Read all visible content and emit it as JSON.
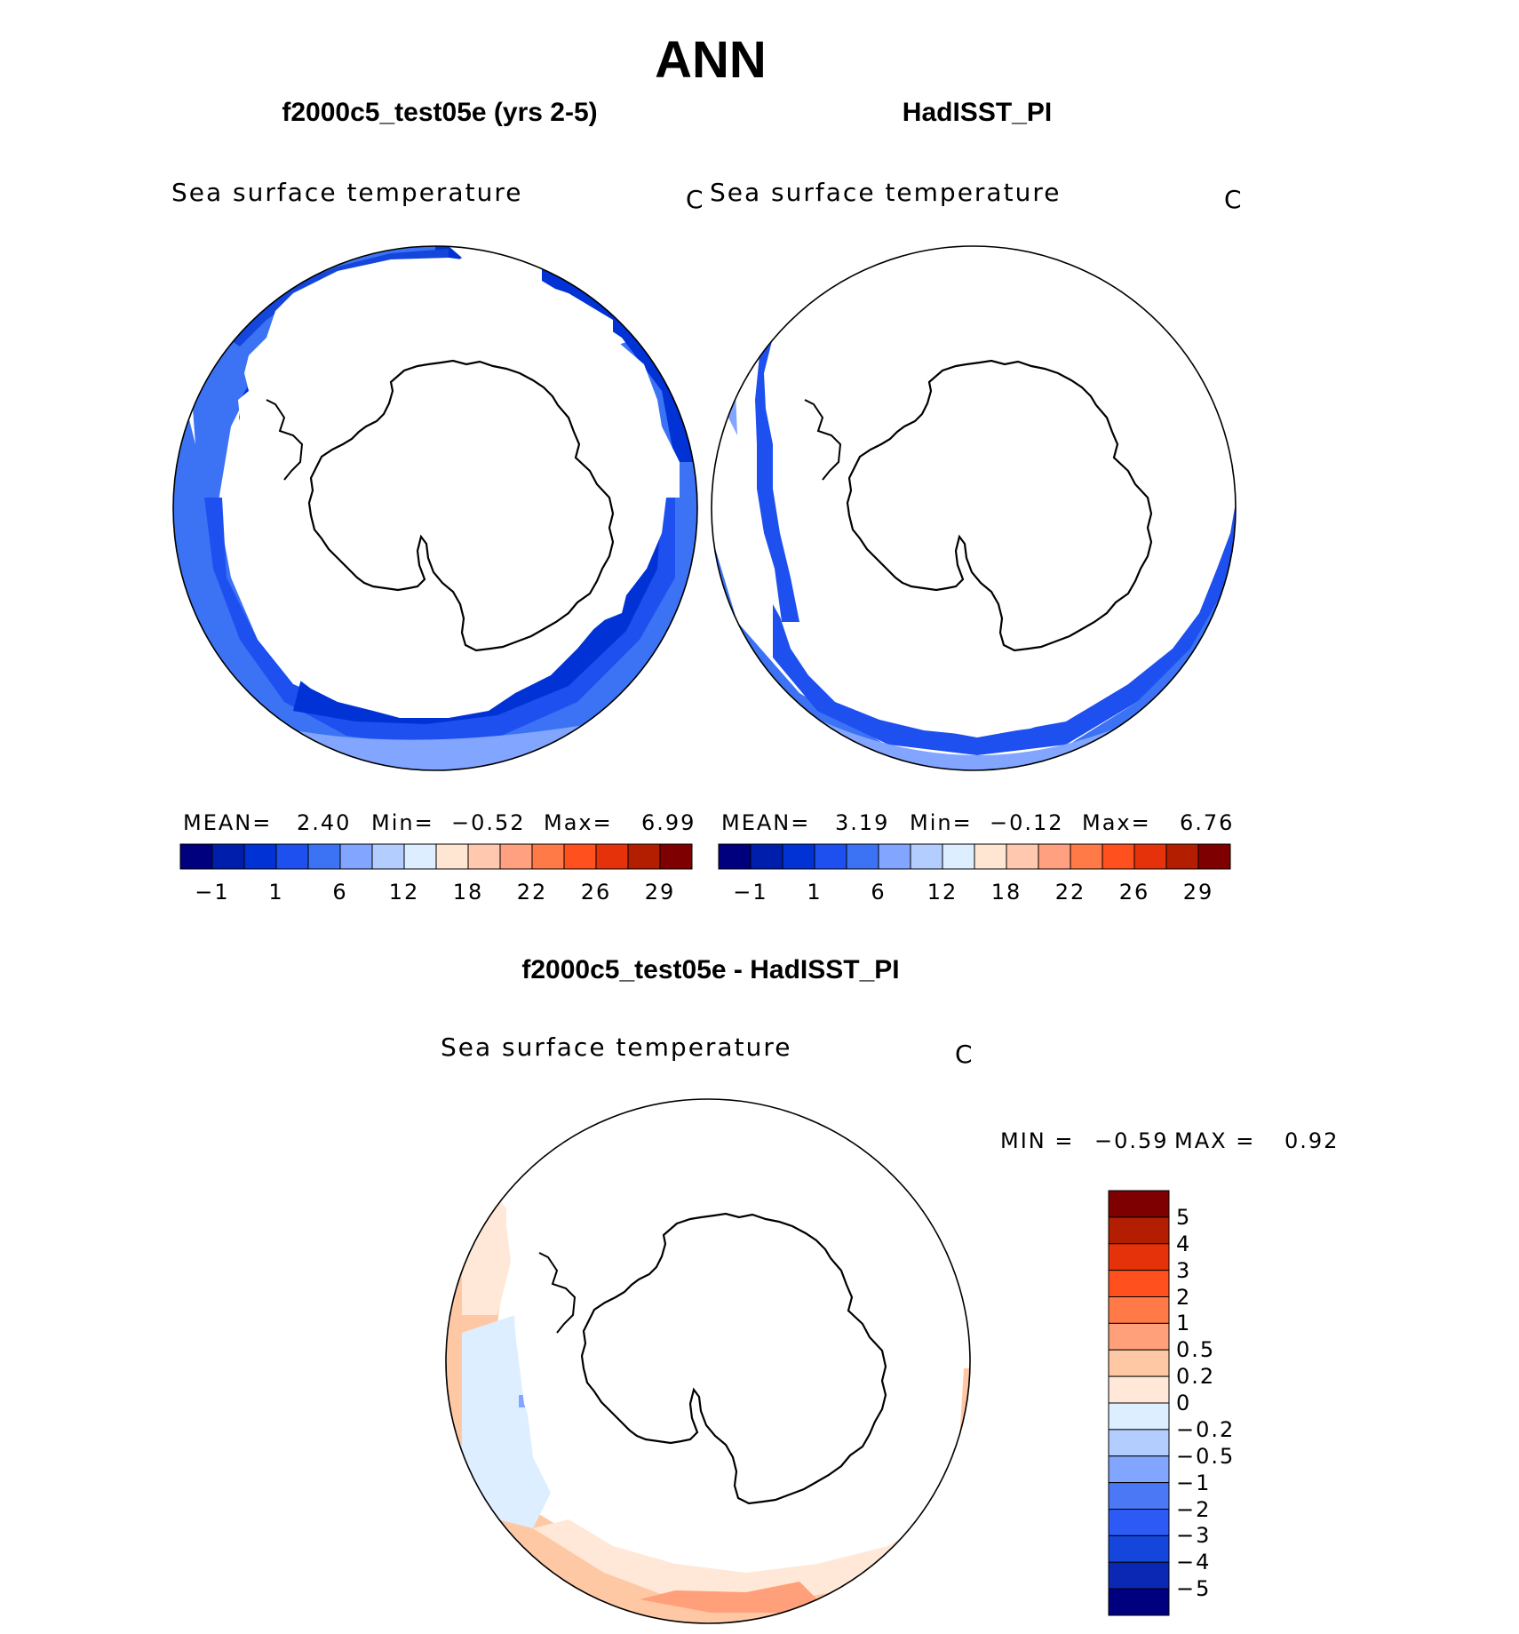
{
  "main_title": "ANN",
  "colors": {
    "contour_fill": [
      "#00007f",
      "#001eac",
      "#0032d6",
      "#1e50f0",
      "#3c73f5",
      "#82a5ff",
      "#b4cdff",
      "#dceeff",
      "#ffe6d2",
      "#ffc8af",
      "#ffa080",
      "#ff7a46",
      "#ff501e",
      "#e6320a",
      "#b41e00",
      "#7f0000"
    ],
    "diff_fill": [
      "#00007f",
      "#0a28b4",
      "#1446dc",
      "#2d5af5",
      "#4b78f5",
      "#82a5ff",
      "#b4cdff",
      "#dceeff",
      "#ffe8d8",
      "#ffc8a5",
      "#ffa07a",
      "#ff7a46",
      "#ff501e",
      "#e6320a",
      "#b41e00",
      "#7f0000"
    ],
    "ocean_dark": "#0032d6",
    "ocean_mid": "#1e50f0",
    "ocean_light": "#3c73f5",
    "ocean_lighter": "#82a5ff",
    "diff_warm": "#ffc8a5",
    "diff_warm_light": "#ffe8d8",
    "diff_cool": "#dceeff",
    "diff_warm_strong": "#ffa07a"
  },
  "panels": [
    {
      "title": "f2000c5_test05e (yrs 2-5)",
      "field_label": "Sea surface temperature",
      "unit": "C",
      "stats": {
        "mean_label": "MEAN=",
        "mean": "2.40",
        "min_label": "Min=",
        "min": "−0.52",
        "max_label": "Max=",
        "max": "6.99"
      },
      "colorbar_ticks": [
        "−1",
        "1",
        "6",
        "12",
        "18",
        "22",
        "26",
        "29"
      ]
    },
    {
      "title": "HadISST_PI",
      "field_label": "Sea surface temperature",
      "unit": "C",
      "stats": {
        "mean_label": "MEAN=",
        "mean": "3.19",
        "min_label": "Min=",
        "min": "−0.12",
        "max_label": "Max=",
        "max": "6.76"
      },
      "colorbar_ticks": [
        "−1",
        "1",
        "6",
        "12",
        "18",
        "22",
        "26",
        "29"
      ]
    }
  ],
  "difference": {
    "title": "f2000c5_test05e - HadISST_PI",
    "field_label": "Sea surface temperature",
    "unit": "C",
    "stats": {
      "min_label": "MIN =",
      "min": "−0.59",
      "max_label": "MAX =",
      "max": "0.92"
    },
    "colorbar_ticks": [
      "5",
      "4",
      "3",
      "2",
      "1",
      "0.5",
      "0.2",
      "0",
      "−0.2",
      "−0.5",
      "−1",
      "−2",
      "−3",
      "−4",
      "−5"
    ]
  }
}
